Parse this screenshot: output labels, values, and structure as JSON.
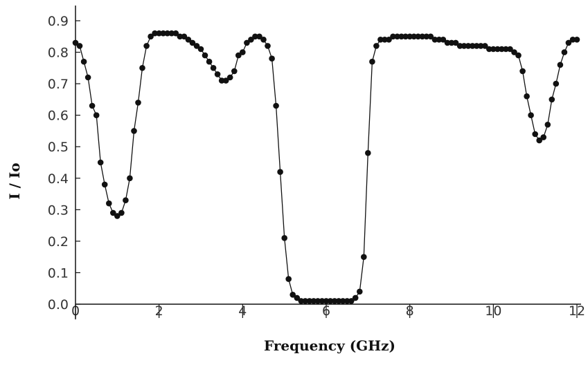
{
  "chart_data": {
    "type": "scatter",
    "xlabel": "Frequency (GHz)",
    "ylabel": "I / Io",
    "xlim": [
      0,
      12
    ],
    "ylim": [
      0,
      0.9
    ],
    "x_ticks": [
      "0",
      "2",
      "4",
      "6",
      "8",
      "10",
      "12"
    ],
    "y_ticks": [
      "0.0",
      "0.1",
      "0.2",
      "0.3",
      "0.4",
      "0.5",
      "0.6",
      "0.7",
      "0.8",
      "0.9"
    ],
    "grid": false,
    "series": [
      {
        "connected": true,
        "marker": "circle",
        "color": "#111111",
        "points": [
          [
            0.0,
            0.83
          ],
          [
            0.1,
            0.82
          ],
          [
            0.2,
            0.77
          ],
          [
            0.3,
            0.72
          ],
          [
            0.4,
            0.63
          ],
          [
            0.5,
            0.6
          ],
          [
            0.6,
            0.45
          ],
          [
            0.7,
            0.38
          ],
          [
            0.8,
            0.32
          ],
          [
            0.9,
            0.29
          ],
          [
            1.0,
            0.28
          ],
          [
            1.1,
            0.29
          ],
          [
            1.2,
            0.33
          ],
          [
            1.3,
            0.4
          ],
          [
            1.4,
            0.55
          ],
          [
            1.5,
            0.64
          ],
          [
            1.6,
            0.75
          ],
          [
            1.7,
            0.82
          ],
          [
            1.8,
            0.85
          ],
          [
            1.9,
            0.86
          ],
          [
            2.0,
            0.86
          ],
          [
            2.1,
            0.86
          ],
          [
            2.2,
            0.86
          ],
          [
            2.3,
            0.86
          ],
          [
            2.4,
            0.86
          ],
          [
            2.5,
            0.85
          ],
          [
            2.6,
            0.85
          ],
          [
            2.7,
            0.84
          ],
          [
            2.8,
            0.83
          ],
          [
            2.9,
            0.82
          ],
          [
            3.0,
            0.81
          ],
          [
            3.1,
            0.79
          ],
          [
            3.2,
            0.77
          ],
          [
            3.3,
            0.75
          ],
          [
            3.4,
            0.73
          ],
          [
            3.5,
            0.71
          ],
          [
            3.6,
            0.71
          ],
          [
            3.7,
            0.72
          ],
          [
            3.8,
            0.74
          ],
          [
            3.9,
            0.79
          ],
          [
            4.0,
            0.8
          ],
          [
            4.1,
            0.83
          ],
          [
            4.2,
            0.84
          ],
          [
            4.3,
            0.85
          ],
          [
            4.4,
            0.85
          ],
          [
            4.5,
            0.84
          ],
          [
            4.6,
            0.82
          ],
          [
            4.7,
            0.78
          ],
          [
            4.8,
            0.63
          ],
          [
            4.9,
            0.42
          ],
          [
            5.0,
            0.21
          ],
          [
            5.1,
            0.08
          ],
          [
            5.2,
            0.03
          ],
          [
            5.3,
            0.02
          ],
          [
            5.4,
            0.01
          ],
          [
            5.5,
            0.01
          ],
          [
            5.6,
            0.01
          ],
          [
            5.7,
            0.01
          ],
          [
            5.8,
            0.01
          ],
          [
            5.9,
            0.01
          ],
          [
            6.0,
            0.01
          ],
          [
            6.1,
            0.01
          ],
          [
            6.2,
            0.01
          ],
          [
            6.3,
            0.01
          ],
          [
            6.4,
            0.01
          ],
          [
            6.5,
            0.01
          ],
          [
            6.6,
            0.01
          ],
          [
            6.7,
            0.02
          ],
          [
            6.8,
            0.04
          ],
          [
            6.9,
            0.15
          ],
          [
            7.0,
            0.48
          ],
          [
            7.1,
            0.77
          ],
          [
            7.2,
            0.82
          ],
          [
            7.3,
            0.84
          ],
          [
            7.4,
            0.84
          ],
          [
            7.5,
            0.84
          ],
          [
            7.6,
            0.85
          ],
          [
            7.7,
            0.85
          ],
          [
            7.8,
            0.85
          ],
          [
            7.9,
            0.85
          ],
          [
            8.0,
            0.85
          ],
          [
            8.1,
            0.85
          ],
          [
            8.2,
            0.85
          ],
          [
            8.3,
            0.85
          ],
          [
            8.4,
            0.85
          ],
          [
            8.5,
            0.85
          ],
          [
            8.6,
            0.84
          ],
          [
            8.7,
            0.84
          ],
          [
            8.8,
            0.84
          ],
          [
            8.9,
            0.83
          ],
          [
            9.0,
            0.83
          ],
          [
            9.1,
            0.83
          ],
          [
            9.2,
            0.82
          ],
          [
            9.3,
            0.82
          ],
          [
            9.4,
            0.82
          ],
          [
            9.5,
            0.82
          ],
          [
            9.6,
            0.82
          ],
          [
            9.7,
            0.82
          ],
          [
            9.8,
            0.82
          ],
          [
            9.9,
            0.81
          ],
          [
            10.0,
            0.81
          ],
          [
            10.1,
            0.81
          ],
          [
            10.2,
            0.81
          ],
          [
            10.3,
            0.81
          ],
          [
            10.4,
            0.81
          ],
          [
            10.5,
            0.8
          ],
          [
            10.6,
            0.79
          ],
          [
            10.7,
            0.74
          ],
          [
            10.8,
            0.66
          ],
          [
            10.9,
            0.6
          ],
          [
            11.0,
            0.54
          ],
          [
            11.1,
            0.52
          ],
          [
            11.2,
            0.53
          ],
          [
            11.3,
            0.57
          ],
          [
            11.4,
            0.65
          ],
          [
            11.5,
            0.7
          ],
          [
            11.6,
            0.76
          ],
          [
            11.7,
            0.8
          ],
          [
            11.8,
            0.83
          ],
          [
            11.9,
            0.84
          ],
          [
            12.0,
            0.84
          ]
        ]
      }
    ]
  }
}
